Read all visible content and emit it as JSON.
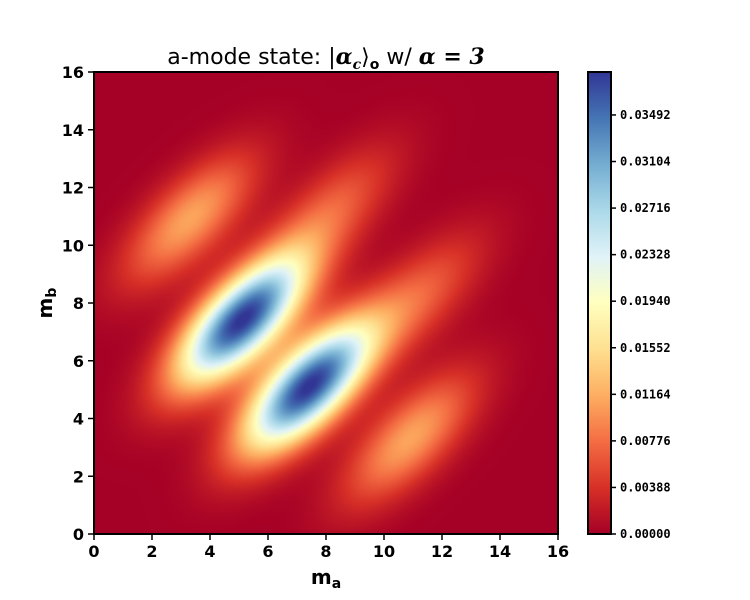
{
  "chart_data": {
    "type": "heatmap",
    "title": {
      "prefix": "a-mode state: ",
      "ket_open": "|",
      "alpha_symbol": "α",
      "alpha_sub": "c",
      "ket_close": "⟩",
      "ket_sub": "o",
      "suffix_text": " w/ ",
      "alpha2": "α",
      "equals": " = 3"
    },
    "xlabel": {
      "main": "m",
      "sub": "a"
    },
    "ylabel": {
      "main": "m",
      "sub": "b"
    },
    "xlim": [
      0,
      16
    ],
    "ylim": [
      0,
      16
    ],
    "xticks": [
      "0",
      "2",
      "4",
      "6",
      "8",
      "10",
      "12",
      "14",
      "16"
    ],
    "yticks": [
      "0",
      "2",
      "4",
      "6",
      "8",
      "10",
      "12",
      "14",
      "16"
    ],
    "colormap": "RdYlBu",
    "colorbar": {
      "min": 0.0,
      "max": 0.0385,
      "ticks": [
        0.0,
        0.00388,
        0.00776,
        0.01164,
        0.01552,
        0.0194,
        0.02328,
        0.02716,
        0.03104,
        0.03492
      ],
      "tick_labels": [
        "0.00000",
        "0.00388",
        "0.00776",
        "0.01164",
        "0.01552",
        "0.01940",
        "0.02328",
        "0.02716",
        "0.03104",
        "0.03492"
      ]
    },
    "peaks": [
      {
        "x": 5.1,
        "y": 7.4,
        "value": 0.0385
      },
      {
        "x": 7.4,
        "y": 5.1,
        "value": 0.0385
      }
    ],
    "side_lobes": [
      {
        "x": 3.3,
        "y": 10.9,
        "value": 0.011
      },
      {
        "x": 10.9,
        "y": 3.3,
        "value": 0.011
      },
      {
        "x": 11.2,
        "y": 8.2,
        "value": 0.0065
      },
      {
        "x": 8.2,
        "y": 11.2,
        "value": 0.0065
      }
    ]
  }
}
